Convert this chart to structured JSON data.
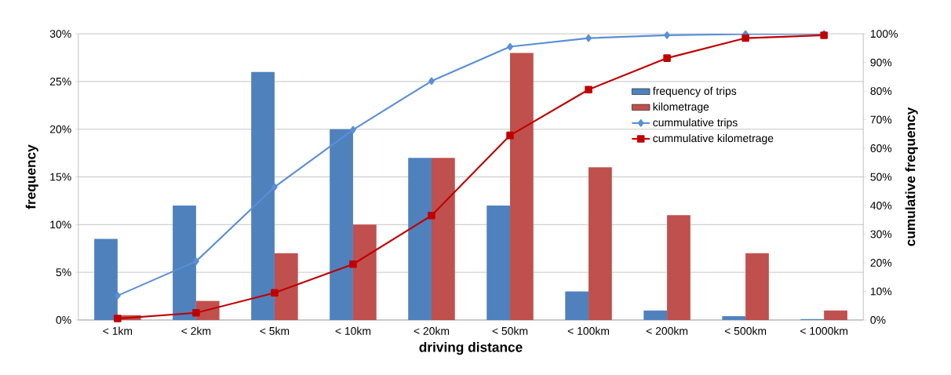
{
  "chart_data": {
    "type": "bar",
    "categories": [
      "< 1km",
      "< 2km",
      "< 5km",
      "< 10km",
      "< 20km",
      "< 50km",
      "< 100km",
      "< 200km",
      "< 500km",
      "< 1000km"
    ],
    "series": [
      {
        "name": "frequency of trips",
        "color": "#4f81bd",
        "values": [
          8.5,
          12,
          26,
          20,
          17,
          12,
          3,
          1,
          0.4,
          0.1
        ]
      },
      {
        "name": "kilometrage",
        "color": "#c0504d",
        "values": [
          0.5,
          2,
          7,
          10,
          17,
          28,
          16,
          11,
          7,
          1
        ]
      },
      {
        "name": "cummulative trips",
        "type": "line",
        "axis": "y2",
        "marker": "diamond",
        "color": "#5b8fd6",
        "values": [
          8.5,
          20.5,
          46.5,
          66.5,
          83.5,
          95.5,
          98.5,
          99.5,
          99.9,
          100
        ]
      },
      {
        "name": "cummulative kilometrage",
        "type": "line",
        "axis": "y2",
        "marker": "square",
        "color": "#c00000",
        "values": [
          0.5,
          2.5,
          9.5,
          19.5,
          36.5,
          64.5,
          80.5,
          91.5,
          98.5,
          99.5
        ]
      }
    ],
    "xlabel": "driving distance",
    "ylabel": "frequency",
    "y2label": "cumulative frequency",
    "ylim": [
      0,
      30
    ],
    "yticks": [
      {
        "value": 0,
        "label": "0%"
      },
      {
        "value": 5,
        "label": "5%"
      },
      {
        "value": 10,
        "label": "10%"
      },
      {
        "value": 15,
        "label": "15%"
      },
      {
        "value": 20,
        "label": "20%"
      },
      {
        "value": 25,
        "label": "25%"
      },
      {
        "value": 30,
        "label": "30%"
      }
    ],
    "y2lim": [
      0,
      100
    ],
    "y2ticks": [
      {
        "value": 0,
        "label": "0%"
      },
      {
        "value": 10,
        "label": "10%"
      },
      {
        "value": 20,
        "label": "20%"
      },
      {
        "value": 30,
        "label": "30%"
      },
      {
        "value": 40,
        "label": "40%"
      },
      {
        "value": 50,
        "label": "50%"
      },
      {
        "value": 60,
        "label": "60%"
      },
      {
        "value": 70,
        "label": "70%"
      },
      {
        "value": 80,
        "label": "80%"
      },
      {
        "value": 90,
        "label": "90%"
      },
      {
        "value": 100,
        "label": "100%"
      }
    ],
    "grid": "y",
    "legend": "right",
    "line_style": "solid"
  }
}
